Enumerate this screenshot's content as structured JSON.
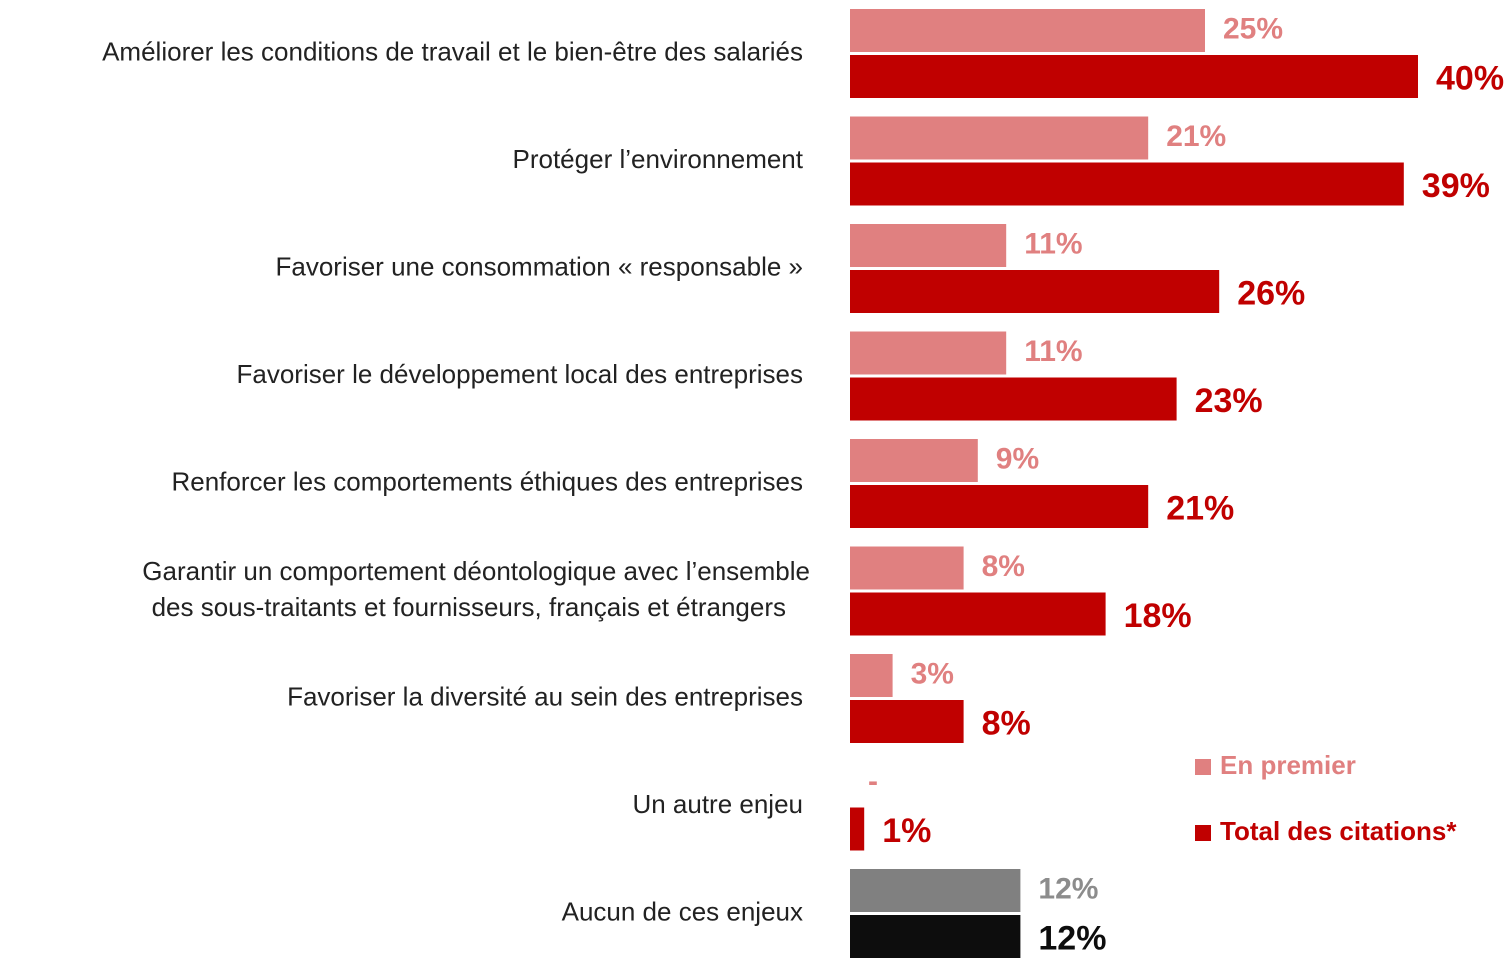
{
  "chart_data": {
    "type": "hbar",
    "categories": [
      "Améliorer les conditions de travail et le bien-être des salariés",
      "Protéger l’environnement",
      "Favoriser une consommation « responsable »",
      "Favoriser le développement local des entreprises",
      "Renforcer les comportements éthiques des entreprises",
      [
        "Garantir un comportement déontologique avec l’ensemble",
        "des sous-traitants et fournisseurs, français et étrangers"
      ],
      "Favoriser la diversité au sein des entreprises",
      "Un autre enjeu",
      "Aucun de ces enjeux"
    ],
    "series": [
      {
        "name": "En premier",
        "color": "#e08080",
        "colors": [
          "#e08080",
          "#e08080",
          "#e08080",
          "#e08080",
          "#e08080",
          "#e08080",
          "#e08080",
          "#e08080",
          "#808080"
        ],
        "values": [
          25,
          21,
          11,
          11,
          9,
          8,
          3,
          null,
          12
        ],
        "value_labels": [
          "25%",
          "21%",
          "11%",
          "11%",
          "9%",
          "8%",
          "3%",
          "-",
          "12%"
        ]
      },
      {
        "name": "Total des citations*",
        "color": "#c00000",
        "colors": [
          "#c00000",
          "#c00000",
          "#c00000",
          "#c00000",
          "#c00000",
          "#c00000",
          "#c00000",
          "#c00000",
          "#0d0d0d"
        ],
        "values": [
          40,
          39,
          26,
          23,
          21,
          18,
          8,
          1,
          12
        ],
        "value_labels": [
          "40%",
          "39%",
          "26%",
          "23%",
          "21%",
          "18%",
          "8%",
          "1%",
          "12%"
        ]
      }
    ],
    "xlim": [
      0,
      40
    ],
    "legend": "lower right"
  }
}
